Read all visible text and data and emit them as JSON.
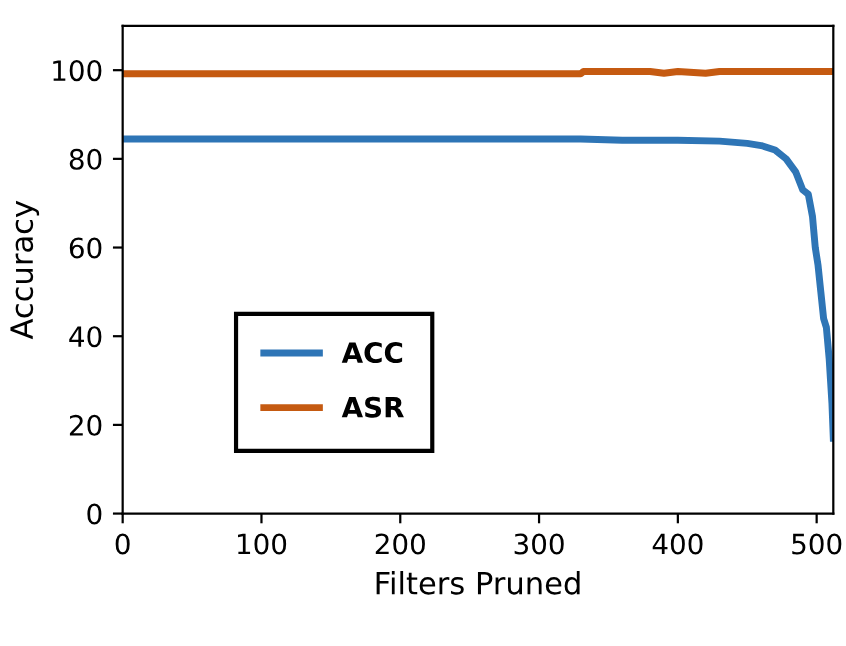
{
  "chart_data": {
    "type": "line",
    "xlabel": "Filters Pruned",
    "ylabel": "Accuracy",
    "xlim": [
      0,
      512
    ],
    "xticks": [
      0,
      100,
      200,
      300,
      400,
      500
    ],
    "ylim": [
      0,
      110
    ],
    "yticks": [
      0,
      20,
      40,
      60,
      80,
      100
    ],
    "grid": false,
    "legend": "bottom left",
    "marker": "none",
    "line_style": "solid",
    "series": [
      {
        "name": "ACC",
        "color": "#2e75b6",
        "x": [
          0,
          100,
          200,
          300,
          330,
          360,
          400,
          430,
          450,
          460,
          470,
          478,
          485,
          490,
          494,
          497,
          499,
          501,
          503,
          505,
          507,
          509,
          510,
          511,
          512
        ],
        "values": [
          84.5,
          84.5,
          84.5,
          84.5,
          84.5,
          84.2,
          84.2,
          84,
          83.5,
          83,
          82,
          80,
          77,
          73,
          72,
          67,
          60,
          56,
          50,
          44,
          42,
          35,
          30,
          25,
          17
        ]
      },
      {
        "name": "ASR",
        "color": "#c55a11",
        "x": [
          0,
          100,
          200,
          300,
          330,
          332,
          380,
          390,
          400,
          420,
          430,
          512
        ],
        "values": [
          99.2,
          99.2,
          99.2,
          99.2,
          99.2,
          99.7,
          99.7,
          99.3,
          99.7,
          99.3,
          99.7,
          99.7
        ]
      }
    ]
  }
}
